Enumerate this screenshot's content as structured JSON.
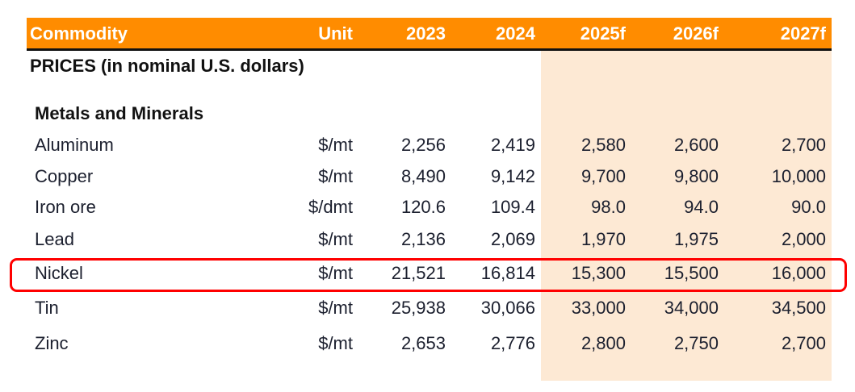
{
  "header": {
    "columns": [
      "Commodity",
      "Unit",
      "2023",
      "2024",
      "2025f",
      "2026f",
      "2027f"
    ]
  },
  "title": "PRICES (in nominal U.S. dollars)",
  "section": "Metals and Minerals",
  "rows": [
    {
      "name": "Aluminum",
      "unit": "$/mt",
      "values": [
        "2,256",
        "2,419",
        "2,580",
        "2,600",
        "2,700"
      ]
    },
    {
      "name": "Copper",
      "unit": "$/mt",
      "values": [
        "8,490",
        "9,142",
        "9,700",
        "9,800",
        "10,000"
      ]
    },
    {
      "name": "Iron ore",
      "unit": "$/dmt",
      "values": [
        "120.6",
        "109.4",
        "98.0",
        "94.0",
        "90.0"
      ]
    },
    {
      "name": "Lead",
      "unit": "$/mt",
      "values": [
        "2,136",
        "2,069",
        "1,970",
        "1,975",
        "2,000"
      ]
    },
    {
      "name": "Nickel",
      "unit": "$/mt",
      "values": [
        "21,521",
        "16,814",
        "15,300",
        "15,500",
        "16,000"
      ]
    },
    {
      "name": "Tin",
      "unit": "$/mt",
      "values": [
        "25,938",
        "30,066",
        "33,000",
        "34,000",
        "34,500"
      ]
    },
    {
      "name": "Zinc",
      "unit": "$/mt",
      "values": [
        "2,653",
        "2,776",
        "2,800",
        "2,750",
        "2,700"
      ]
    }
  ],
  "highlighted_row": "Nickel",
  "colors": {
    "header": "#ff8c00",
    "forecast_shade": "#fde9d4",
    "highlight": "#ff0000"
  }
}
